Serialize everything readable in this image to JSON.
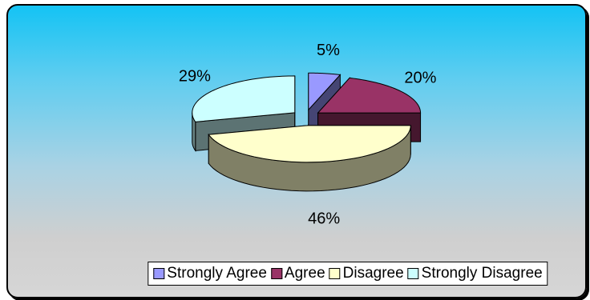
{
  "chart_data": {
    "type": "pie",
    "title": "",
    "three_d": true,
    "exploded": true,
    "start_clockwise_from": "top",
    "categories": [
      "Strongly Agree",
      "Agree",
      "Disagree",
      "Strongly Disagree"
    ],
    "values": [
      5,
      20,
      46,
      29
    ],
    "data_labels": [
      "5%",
      "20%",
      "46%",
      "29%"
    ],
    "colors": [
      "#9999ff",
      "#993366",
      "#ffffcc",
      "#ccffff"
    ],
    "legend_position": "bottom",
    "background": "gradient sky blue to light gray"
  }
}
